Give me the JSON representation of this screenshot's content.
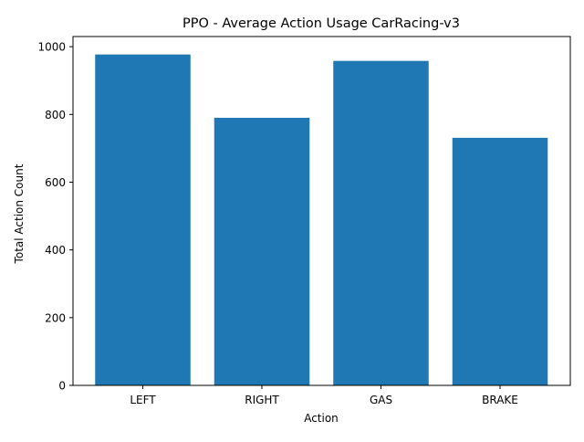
{
  "chart_data": {
    "type": "bar",
    "title": "PPO - Average Action Usage CarRacing-v3",
    "xlabel": "Action",
    "ylabel": "Total Action Count",
    "categories": [
      "LEFT",
      "RIGHT",
      "GAS",
      "BRAKE"
    ],
    "values": [
      977,
      790,
      958,
      731
    ],
    "ylim": [
      0,
      1030
    ],
    "yticks": [
      0,
      200,
      400,
      600,
      800,
      1000
    ],
    "grid": false,
    "legend": "none",
    "bar_color": "#1f77b4"
  }
}
